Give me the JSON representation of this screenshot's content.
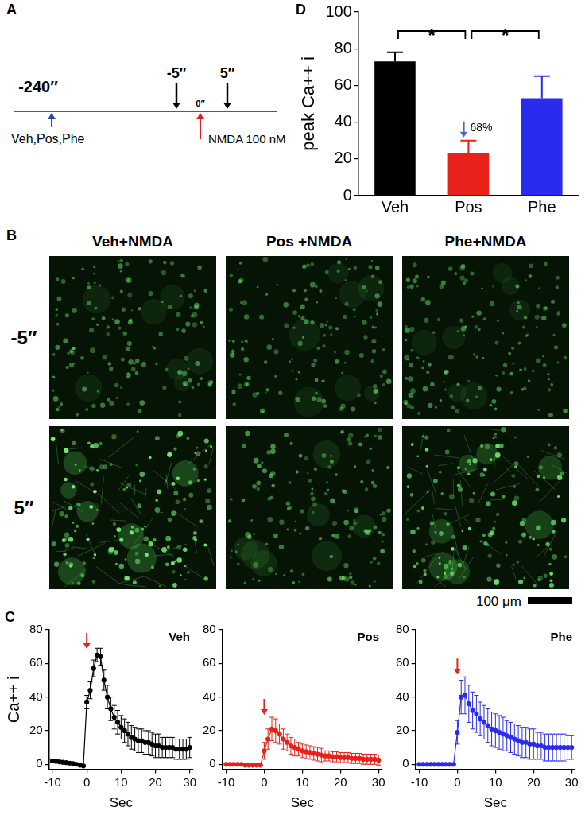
{
  "timeline": {
    "panel": "A",
    "events": [
      {
        "label": "-240″",
        "text": "Veh,Pos,Phe"
      },
      {
        "label": "-5″"
      },
      {
        "label": "0″",
        "text": "NMDA 100 nM"
      },
      {
        "label": "5″"
      }
    ]
  },
  "images": {
    "panel": "B",
    "columns": [
      "Veh+NMDA",
      "Pos +NMDA",
      "Phe+NMDA"
    ],
    "rows": [
      "-5″",
      "5″"
    ],
    "scale_bar": "100 μm"
  },
  "chart_data": [
    {
      "panel": "C",
      "type": "line",
      "title": "Veh",
      "xlabel": "Sec",
      "ylabel": "Ca++ i",
      "xlim": [
        -11,
        31
      ],
      "xticks": [
        -10,
        0,
        10,
        20,
        30
      ],
      "ylim": [
        -3,
        80
      ],
      "yticks": [
        0,
        20,
        40,
        60,
        80
      ],
      "arrow_x": 0,
      "x": [
        -10,
        -9,
        -8,
        -7,
        -6,
        -5,
        -4,
        -3,
        -2,
        -1,
        0,
        1,
        2,
        3,
        4,
        5,
        6,
        7,
        8,
        9,
        10,
        11,
        12,
        13,
        14,
        15,
        16,
        17,
        18,
        19,
        20,
        21,
        22,
        23,
        24,
        25,
        26,
        27,
        28,
        29,
        30
      ],
      "series": [
        {
          "color": "#000000",
          "marker": "circle",
          "values": [
            2,
            1.8,
            1.5,
            1.2,
            1,
            0.7,
            0.4,
            0,
            -0.5,
            -1,
            37,
            44,
            57,
            65,
            64,
            50,
            40,
            33,
            28,
            25,
            22,
            20,
            18,
            16,
            15,
            14,
            14,
            13,
            13,
            12,
            11,
            11,
            10,
            10,
            10,
            10,
            9,
            9,
            9,
            9,
            10
          ],
          "errors": [
            0.5,
            0.5,
            0.5,
            0.5,
            0.5,
            0.5,
            0.5,
            0.5,
            0.5,
            0.5,
            4,
            5,
            5,
            4,
            5,
            6,
            7,
            7,
            7,
            7,
            7,
            7,
            7,
            7,
            7,
            7,
            7,
            7,
            7,
            7,
            7,
            7,
            6,
            6,
            6,
            6,
            6,
            6,
            6,
            6,
            6
          ]
        }
      ]
    },
    {
      "type": "line",
      "title": "Pos",
      "xlabel": "Sec",
      "xlim": [
        -11,
        31
      ],
      "xticks": [
        -10,
        0,
        10,
        20,
        30
      ],
      "ylim": [
        -3,
        80
      ],
      "yticks": [
        0,
        20,
        40,
        60,
        80
      ],
      "arrow_x": 0,
      "x": [
        -10,
        -9,
        -8,
        -7,
        -6,
        -5,
        -4,
        -3,
        -2,
        -1,
        0,
        1,
        2,
        3,
        4,
        5,
        6,
        7,
        8,
        9,
        10,
        11,
        12,
        13,
        14,
        15,
        16,
        17,
        18,
        19,
        20,
        21,
        22,
        23,
        24,
        25,
        26,
        27,
        28,
        29,
        30
      ],
      "series": [
        {
          "color": "#e8211a",
          "marker": "circle",
          "values": [
            0,
            0,
            0,
            0,
            0,
            -0.5,
            -0.5,
            -0.5,
            -0.5,
            -0.5,
            8,
            15,
            21,
            20,
            18,
            15,
            13,
            11,
            10,
            9,
            8,
            7.5,
            7,
            6.5,
            6,
            5.5,
            5,
            5,
            4.5,
            4.5,
            4,
            4,
            4,
            3.5,
            3.5,
            3.5,
            3,
            3,
            3,
            3,
            2.5
          ],
          "errors": [
            0.3,
            0.3,
            0.3,
            0.3,
            0.3,
            0.3,
            0.3,
            0.3,
            0.3,
            0.3,
            5,
            6,
            7,
            7,
            6,
            6,
            5,
            5,
            5,
            4,
            4,
            4,
            4,
            4,
            4,
            4,
            3,
            3,
            3,
            3,
            3,
            3,
            3,
            3,
            3,
            3,
            3,
            3,
            3,
            3,
            3
          ]
        }
      ]
    },
    {
      "type": "line",
      "title": "Phe",
      "xlabel": "Sec",
      "xlim": [
        -11,
        31
      ],
      "xticks": [
        -10,
        0,
        10,
        20,
        30
      ],
      "ylim": [
        -3,
        80
      ],
      "yticks": [
        0,
        20,
        40,
        60,
        80
      ],
      "arrow_x": 0,
      "x": [
        -10,
        -9,
        -8,
        -7,
        -6,
        -5,
        -4,
        -3,
        -2,
        -1,
        0,
        1,
        2,
        3,
        4,
        5,
        6,
        7,
        8,
        9,
        10,
        11,
        12,
        13,
        14,
        15,
        16,
        17,
        18,
        19,
        20,
        21,
        22,
        23,
        24,
        25,
        26,
        27,
        28,
        29,
        30
      ],
      "series": [
        {
          "color": "#2b2bf0",
          "marker": "circle",
          "values": [
            0,
            0,
            0,
            0,
            0,
            0,
            0,
            0,
            0,
            0,
            19,
            40,
            41,
            36,
            32,
            30,
            27,
            25,
            23,
            21,
            20,
            19,
            18,
            17,
            16,
            15,
            14,
            13,
            13,
            12,
            12,
            11,
            11,
            10,
            10,
            10,
            10,
            10,
            10,
            10,
            10
          ],
          "errors": [
            0.3,
            0.3,
            0.3,
            0.3,
            0.3,
            0.3,
            0.3,
            0.3,
            0.3,
            0.3,
            7,
            10,
            11,
            11,
            11,
            11,
            10,
            10,
            10,
            10,
            10,
            10,
            10,
            9,
            9,
            9,
            9,
            9,
            9,
            9,
            9,
            8,
            8,
            8,
            8,
            8,
            8,
            8,
            8,
            7,
            7
          ]
        }
      ]
    },
    {
      "panel": "D",
      "type": "bar",
      "ylabel": "peak Ca++ i",
      "categories": [
        "Veh",
        "Pos",
        "Phe"
      ],
      "values": [
        73,
        23,
        53
      ],
      "errors": [
        5,
        7,
        12
      ],
      "colors": [
        "#000000",
        "#e8211a",
        "#2b2bf0"
      ],
      "ylim": [
        0,
        100
      ],
      "yticks": [
        0,
        20,
        40,
        60,
        80,
        100
      ],
      "significance": [
        {
          "from": "Veh",
          "to": "Pos",
          "text": "*"
        },
        {
          "from": "Pos",
          "to": "Phe",
          "text": "*"
        }
      ],
      "annotations": [
        {
          "text": "68%",
          "category": "Pos",
          "color": "#4a66c9"
        }
      ]
    }
  ]
}
